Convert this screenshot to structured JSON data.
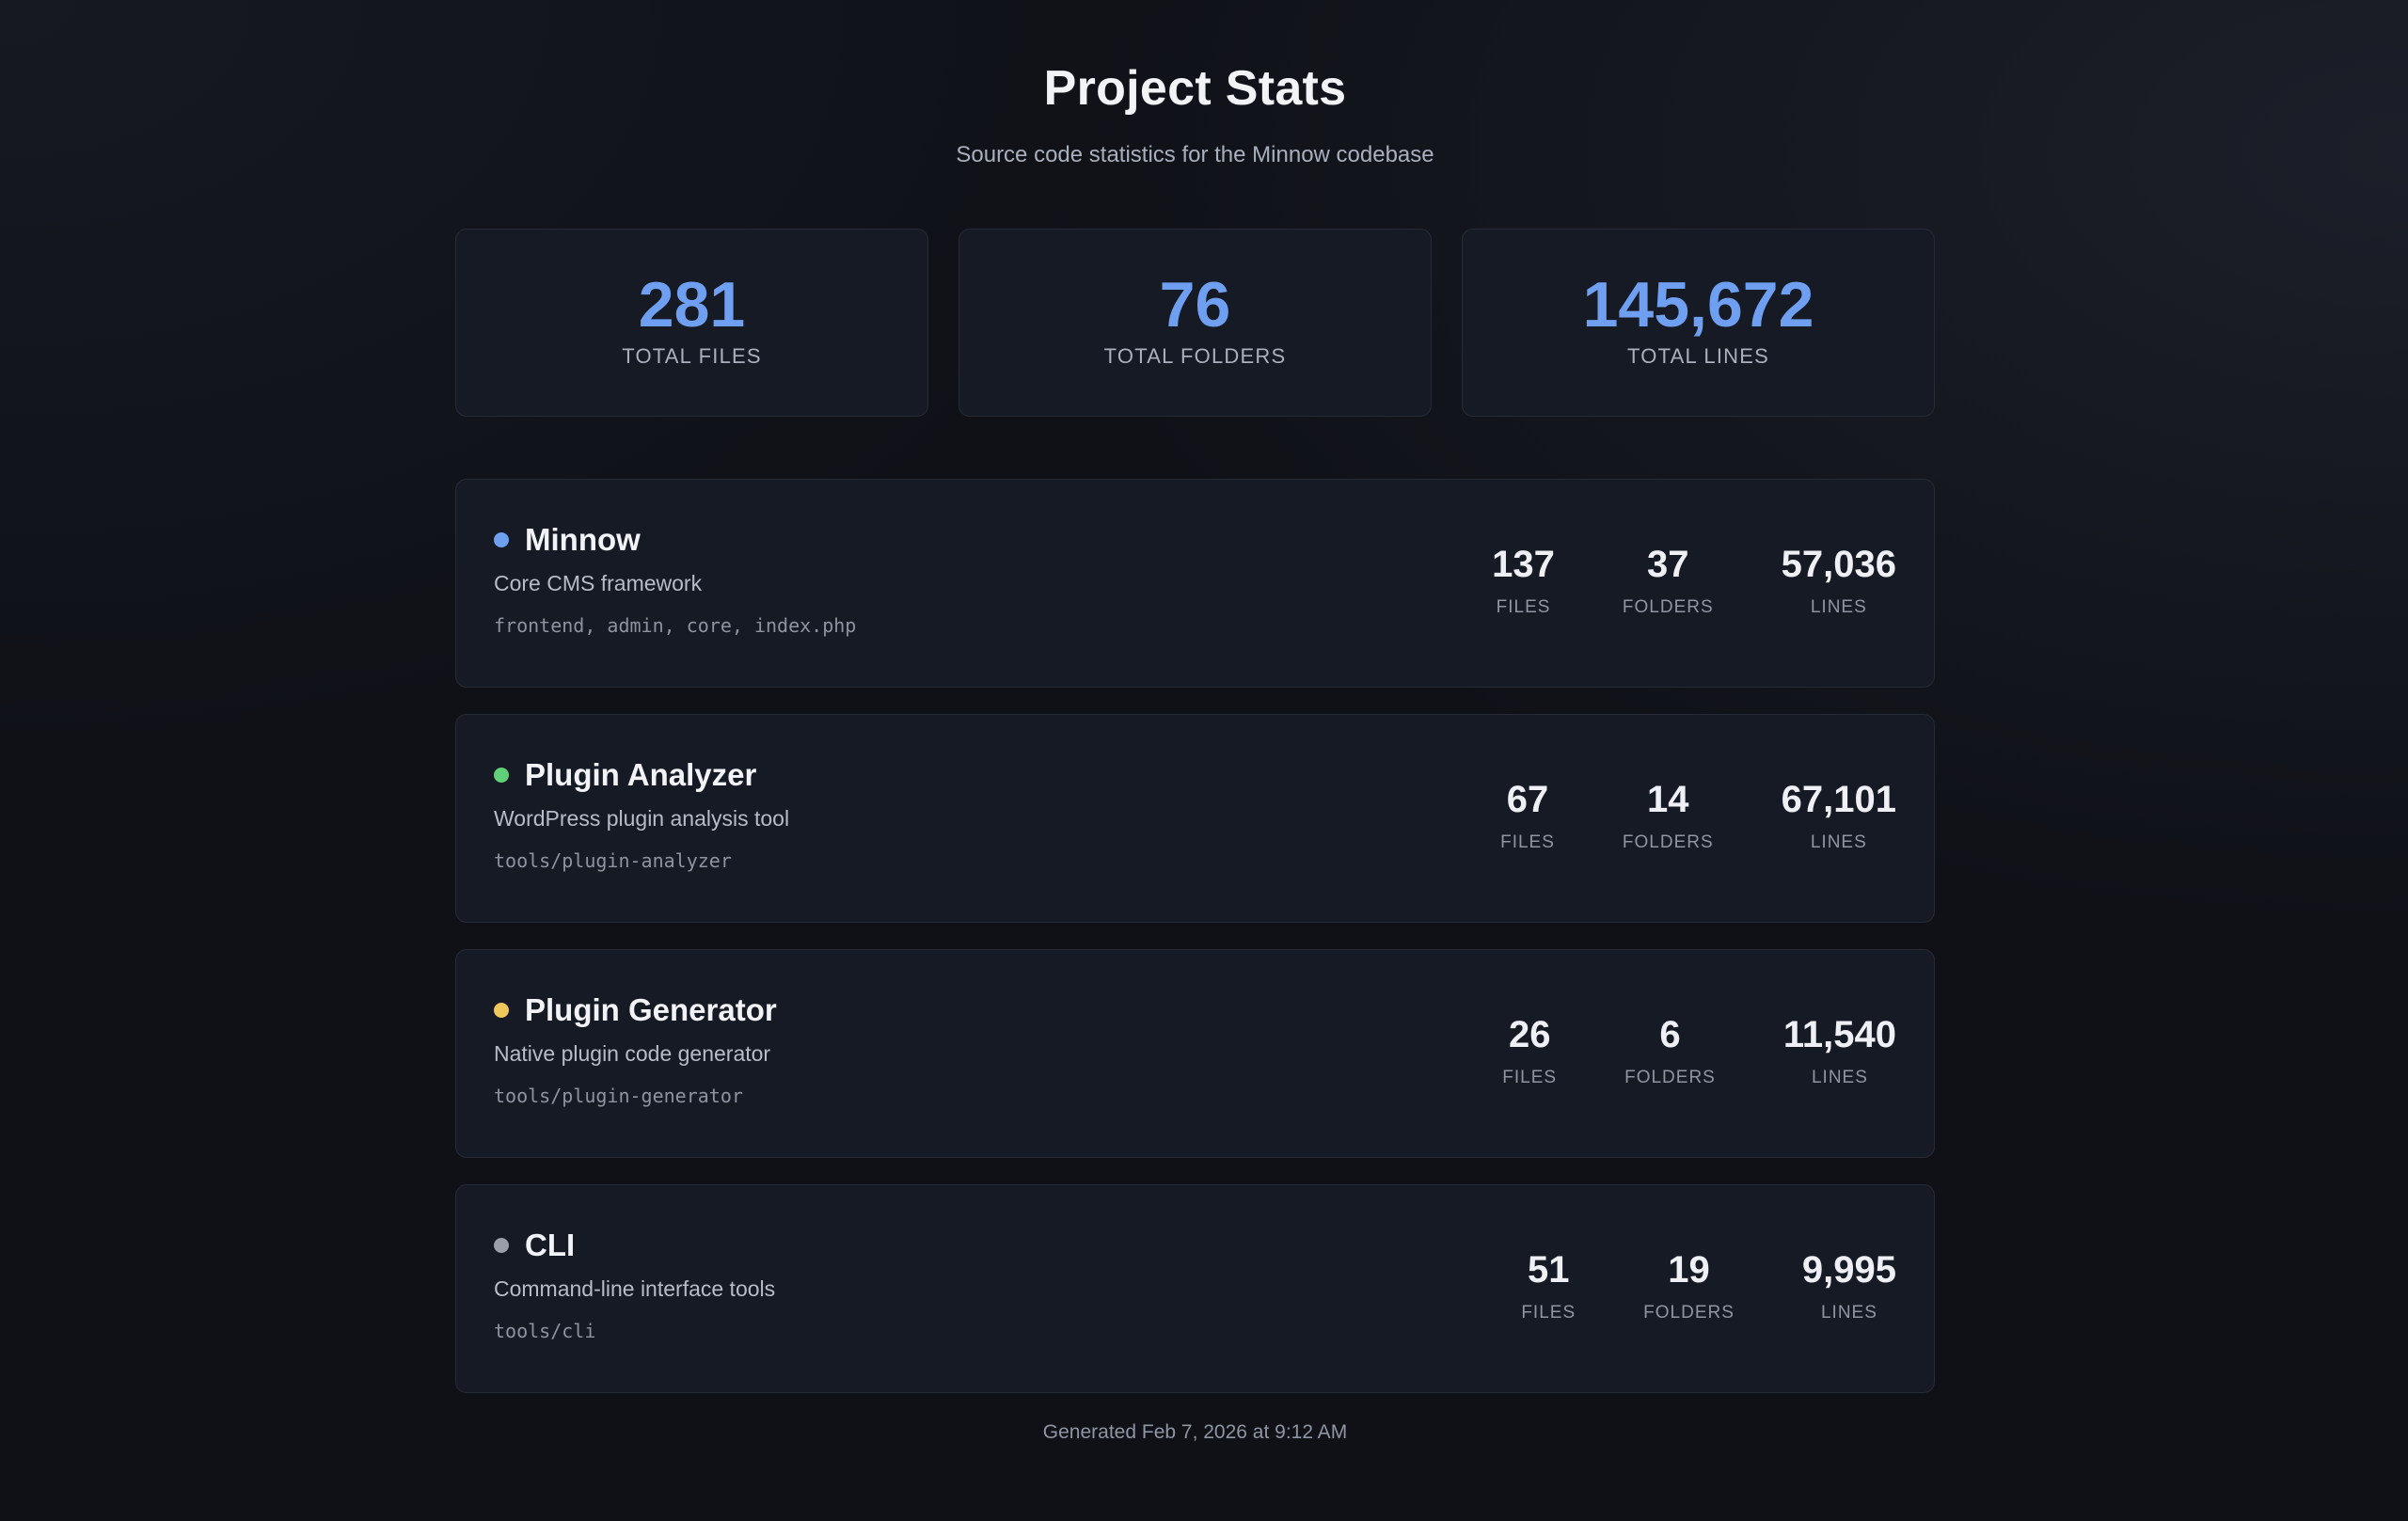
{
  "header": {
    "title": "Project Stats",
    "subtitle": "Source code statistics for the Minnow codebase"
  },
  "summary": [
    {
      "value": "281",
      "label": "TOTAL FILES"
    },
    {
      "value": "76",
      "label": "TOTAL FOLDERS"
    },
    {
      "value": "145,672",
      "label": "TOTAL LINES"
    }
  ],
  "stat_labels": {
    "files": "FILES",
    "folders": "FOLDERS",
    "lines": "LINES"
  },
  "projects": [
    {
      "name": "Minnow",
      "description": "Core CMS framework",
      "path": "frontend, admin, core, index.php",
      "dot_color": "#6e9ff1",
      "files": "137",
      "folders": "37",
      "lines": "57,036"
    },
    {
      "name": "Plugin Analyzer",
      "description": "WordPress plugin analysis tool",
      "path": "tools/plugin-analyzer",
      "dot_color": "#5fcf7a",
      "files": "67",
      "folders": "14",
      "lines": "67,101"
    },
    {
      "name": "Plugin Generator",
      "description": "Native plugin code generator",
      "path": "tools/plugin-generator",
      "dot_color": "#f0c75a",
      "files": "26",
      "folders": "6",
      "lines": "11,540"
    },
    {
      "name": "CLI",
      "description": "Command-line interface tools",
      "path": "tools/cli",
      "dot_color": "#9a9ea8",
      "files": "51",
      "folders": "19",
      "lines": "9,995"
    }
  ],
  "footer": {
    "generated": "Generated Feb 7, 2026 at 9:12 AM"
  },
  "colors": {
    "accent": "#6e9ff1",
    "background": "#0f1117",
    "card": "#161a24"
  }
}
